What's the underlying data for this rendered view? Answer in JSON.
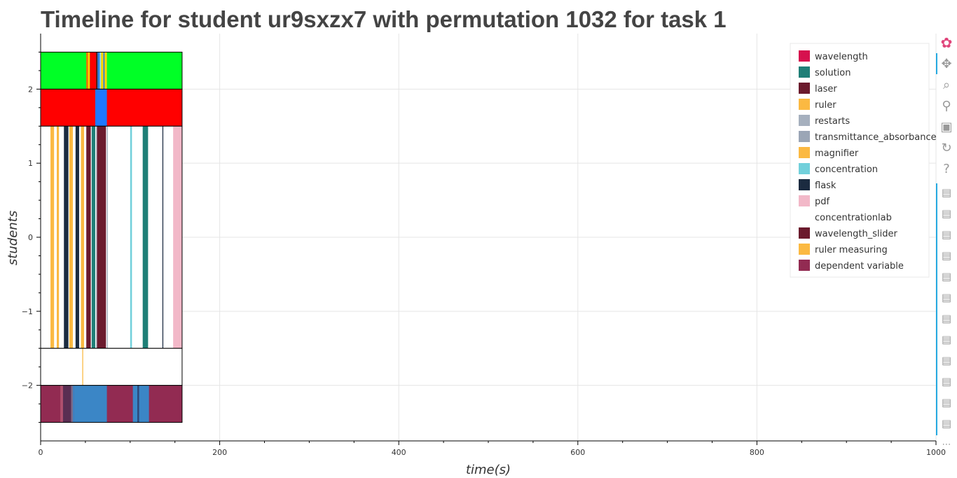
{
  "chart_data": {
    "type": "timeline",
    "title": "Timeline for student ur9sxzx7 with permutation 1032 for task 1",
    "xlabel": "time(s)",
    "ylabel": "students",
    "xlim": [
      0,
      1000
    ],
    "ylim": [
      -2.75,
      2.75
    ],
    "x_ticks": [
      0,
      200,
      400,
      600,
      800,
      1000
    ],
    "x_tick_labels": [
      "0",
      "200",
      "400",
      "600",
      "800",
      "1000"
    ],
    "y_ticks": [
      -2,
      -1,
      0,
      1,
      2
    ],
    "y_tick_labels": [
      "−2",
      "−1",
      "0",
      "1",
      "2"
    ],
    "grid": true,
    "legend_position": "top-right",
    "legend": [
      {
        "label": "wavelength",
        "color": "#d6114e"
      },
      {
        "label": "solution",
        "color": "#1f7f77"
      },
      {
        "label": "laser",
        "color": "#6b1a2d"
      },
      {
        "label": "ruler",
        "color": "#fbb942"
      },
      {
        "label": "restarts",
        "color": "#a6b0be"
      },
      {
        "label": "transmittance_absorbance",
        "color": "#9ba6b6"
      },
      {
        "label": "magnifier",
        "color": "#fbb942"
      },
      {
        "label": "concentration",
        "color": "#72d0db"
      },
      {
        "label": "flask",
        "color": "#1b2b40"
      },
      {
        "label": "pdf",
        "color": "#f2b8c8"
      },
      {
        "label": "concentrationlab",
        "color": "#ffffff"
      },
      {
        "label": "wavelength_slider",
        "color": "#6b1a2d"
      },
      {
        "label": "ruler measuring",
        "color": "#fbb942"
      },
      {
        "label": "dependent variable",
        "color": "#922b52"
      }
    ],
    "rows": [
      {
        "y0": 2.0,
        "y1": 2.5,
        "background": "#00ff26",
        "frame": true,
        "segments": [
          {
            "x0": 51,
            "x1": 53,
            "color": "#ff6a00"
          },
          {
            "x0": 53,
            "x1": 55,
            "color": "#ffd400"
          },
          {
            "x0": 55,
            "x1": 62,
            "color": "#ff0000"
          },
          {
            "x0": 62,
            "x1": 63.5,
            "color": "#5a0b14"
          },
          {
            "x0": 63.5,
            "x1": 66,
            "color": "#2f7de1"
          },
          {
            "x0": 66,
            "x1": 67.5,
            "color": "#9ad4ff"
          },
          {
            "x0": 67.5,
            "x1": 70,
            "color": "#ffd400"
          },
          {
            "x0": 70,
            "x1": 71.5,
            "color": "#2f7de1"
          },
          {
            "x0": 71.5,
            "x1": 74,
            "color": "#ffd400"
          }
        ]
      },
      {
        "y0": 1.5,
        "y1": 2.0,
        "background": "#ff0000",
        "frame": true,
        "segments": [
          {
            "x0": 61,
            "x1": 74,
            "color": "#1f78ff"
          }
        ]
      },
      {
        "y0": -1.5,
        "y1": 1.5,
        "background": "#ffffff",
        "frame": true,
        "segments": [
          {
            "x0": 11,
            "x1": 15,
            "color": "#fbb942"
          },
          {
            "x0": 18,
            "x1": 20.5,
            "color": "#fbb942"
          },
          {
            "x0": 26,
            "x1": 31,
            "color": "#1b2b40"
          },
          {
            "x0": 32,
            "x1": 36,
            "color": "#fbb942"
          },
          {
            "x0": 39,
            "x1": 43,
            "color": "#1b2b40"
          },
          {
            "x0": 45,
            "x1": 48.5,
            "color": "#fbb942"
          },
          {
            "x0": 51,
            "x1": 56,
            "color": "#6b1a2d"
          },
          {
            "x0": 57,
            "x1": 61,
            "color": "#1f7f77"
          },
          {
            "x0": 62,
            "x1": 63,
            "color": "#a6b0be"
          },
          {
            "x0": 63,
            "x1": 73,
            "color": "#6b1a2d"
          },
          {
            "x0": 74,
            "x1": 75,
            "color": "#9ba6b6"
          },
          {
            "x0": 100,
            "x1": 102,
            "color": "#72d0db"
          },
          {
            "x0": 114,
            "x1": 120,
            "color": "#1f7f77"
          },
          {
            "x0": 136,
            "x1": 137,
            "color": "#1b2b40"
          },
          {
            "x0": 148,
            "x1": 158,
            "color": "#f2b8c8"
          }
        ]
      },
      {
        "y0": -2.0,
        "y1": -1.5,
        "background": "#ffffff",
        "frame": true,
        "segments": [
          {
            "x0": 46.5,
            "x1": 47.5,
            "color": "#fbb942"
          }
        ]
      },
      {
        "y0": -2.5,
        "y1": -2.0,
        "background": "#922b52",
        "frame": true,
        "segments": [
          {
            "x0": 22,
            "x1": 25,
            "color": "#b0506e"
          },
          {
            "x0": 25,
            "x1": 34,
            "color": "#5a2e52"
          },
          {
            "x0": 34,
            "x1": 36,
            "color": "#7a6b8a"
          },
          {
            "x0": 36,
            "x1": 37,
            "color": "#3b86c6"
          },
          {
            "x0": 37,
            "x1": 74,
            "color": "#3b86c6"
          },
          {
            "x0": 103,
            "x1": 108,
            "color": "#3b86c6"
          },
          {
            "x0": 108,
            "x1": 110,
            "color": "#2a4a7a"
          },
          {
            "x0": 110,
            "x1": 121,
            "color": "#3b86c6"
          }
        ]
      }
    ]
  },
  "toolbar": {
    "tools": [
      {
        "name": "bokeh-logo-icon",
        "glyph": "✿",
        "color": "#e0457b",
        "interactable": false
      },
      {
        "name": "pan-icon",
        "glyph": "✥",
        "color": "#999999",
        "interactable": true
      },
      {
        "name": "box-zoom-icon",
        "glyph": "⌕",
        "color": "#999999",
        "interactable": true
      },
      {
        "name": "wheel-zoom-icon",
        "glyph": "⚲",
        "color": "#999999",
        "interactable": true
      },
      {
        "name": "save-icon",
        "glyph": "▣",
        "color": "#999999",
        "interactable": true
      },
      {
        "name": "reset-icon",
        "glyph": "↻",
        "color": "#999999",
        "interactable": true
      },
      {
        "name": "help-icon",
        "glyph": "?",
        "color": "#999999",
        "interactable": true
      }
    ],
    "hover_tool_count": 12,
    "hover_glyph": "▤",
    "more_glyph": "⋯"
  }
}
